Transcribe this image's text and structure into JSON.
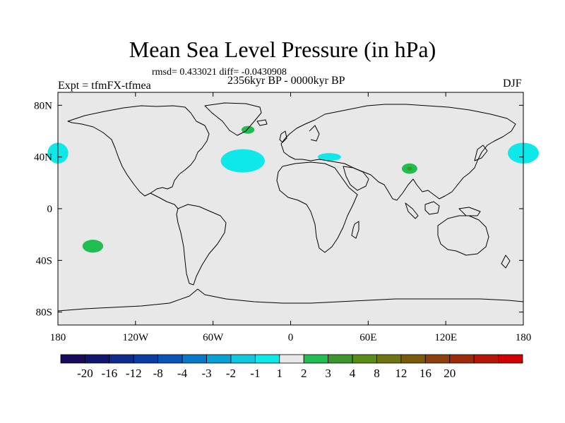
{
  "header": {
    "title": "Mean Sea Level Pressure (in hPa)",
    "stats": "rmsd= 0.433021 diff= -0.0430908",
    "period": "2356kyr BP - 0000kyr BP",
    "experiment": "Expt = tfmFX-tfmea",
    "season": "DJF"
  },
  "axes": {
    "x_ticks": [
      {
        "label": "180",
        "lon": -180
      },
      {
        "label": "120W",
        "lon": -120
      },
      {
        "label": "60W",
        "lon": -60
      },
      {
        "label": "0",
        "lon": 0
      },
      {
        "label": "60E",
        "lon": 60
      },
      {
        "label": "120E",
        "lon": 120
      },
      {
        "label": "180",
        "lon": 180
      }
    ],
    "y_ticks": [
      {
        "label": "80N",
        "lat": 80
      },
      {
        "label": "40N",
        "lat": 40
      },
      {
        "label": "0",
        "lat": 0
      },
      {
        "label": "40S",
        "lat": -40
      },
      {
        "label": "80S",
        "lat": -80
      }
    ]
  },
  "colorbar": {
    "labels": [
      "-20",
      "-16",
      "-12",
      "-8",
      "-4",
      "-3",
      "-2",
      "-1",
      "1",
      "2",
      "3",
      "4",
      "8",
      "12",
      "16",
      "20"
    ],
    "colors": [
      "#1a0a5c",
      "#10166e",
      "#0e2a8c",
      "#0a3ca6",
      "#0a56b8",
      "#0878c8",
      "#08a0d6",
      "#12c8e0",
      "#0ee8e8",
      "#e8e8e8",
      "#20be50",
      "#3c962c",
      "#5a8c18",
      "#6e7410",
      "#7a5a0a",
      "#8c3e0c",
      "#9e2a0a",
      "#b4160a",
      "#d00000"
    ]
  },
  "map": {
    "land_fill": "#e8e8e8",
    "anomalies": [
      {
        "name": "north-pacific-west-low",
        "lon": 180,
        "lat": 43,
        "rlon": 12,
        "rlat": 8,
        "color": "#0ee8e8"
      },
      {
        "name": "north-pacific-east-low",
        "lon": -180,
        "lat": 43,
        "rlon": 8,
        "rlat": 8,
        "color": "#0ee8e8"
      },
      {
        "name": "north-atlantic-low",
        "lon": -37,
        "lat": 37,
        "rlon": 17,
        "rlat": 9,
        "color": "#0ee8e8"
      },
      {
        "name": "greenland-high",
        "lon": -33,
        "lat": 61,
        "rlon": 5,
        "rlat": 3,
        "color": "#20be50"
      },
      {
        "name": "mediterranean-low",
        "lon": 30,
        "lat": 40,
        "rlon": 9,
        "rlat": 3,
        "color": "#0ee8e8"
      },
      {
        "name": "tibet-high",
        "lon": 92,
        "lat": 31,
        "rlon": 6,
        "rlat": 4,
        "color": "#20be50"
      },
      {
        "name": "tibet-core-high",
        "lon": 92,
        "lat": 31,
        "rlon": 2,
        "rlat": 1.5,
        "color": "#3c962c"
      },
      {
        "name": "south-pacific-high",
        "lon": -153,
        "lat": -29,
        "rlon": 8,
        "rlat": 5,
        "color": "#20be50"
      }
    ]
  }
}
